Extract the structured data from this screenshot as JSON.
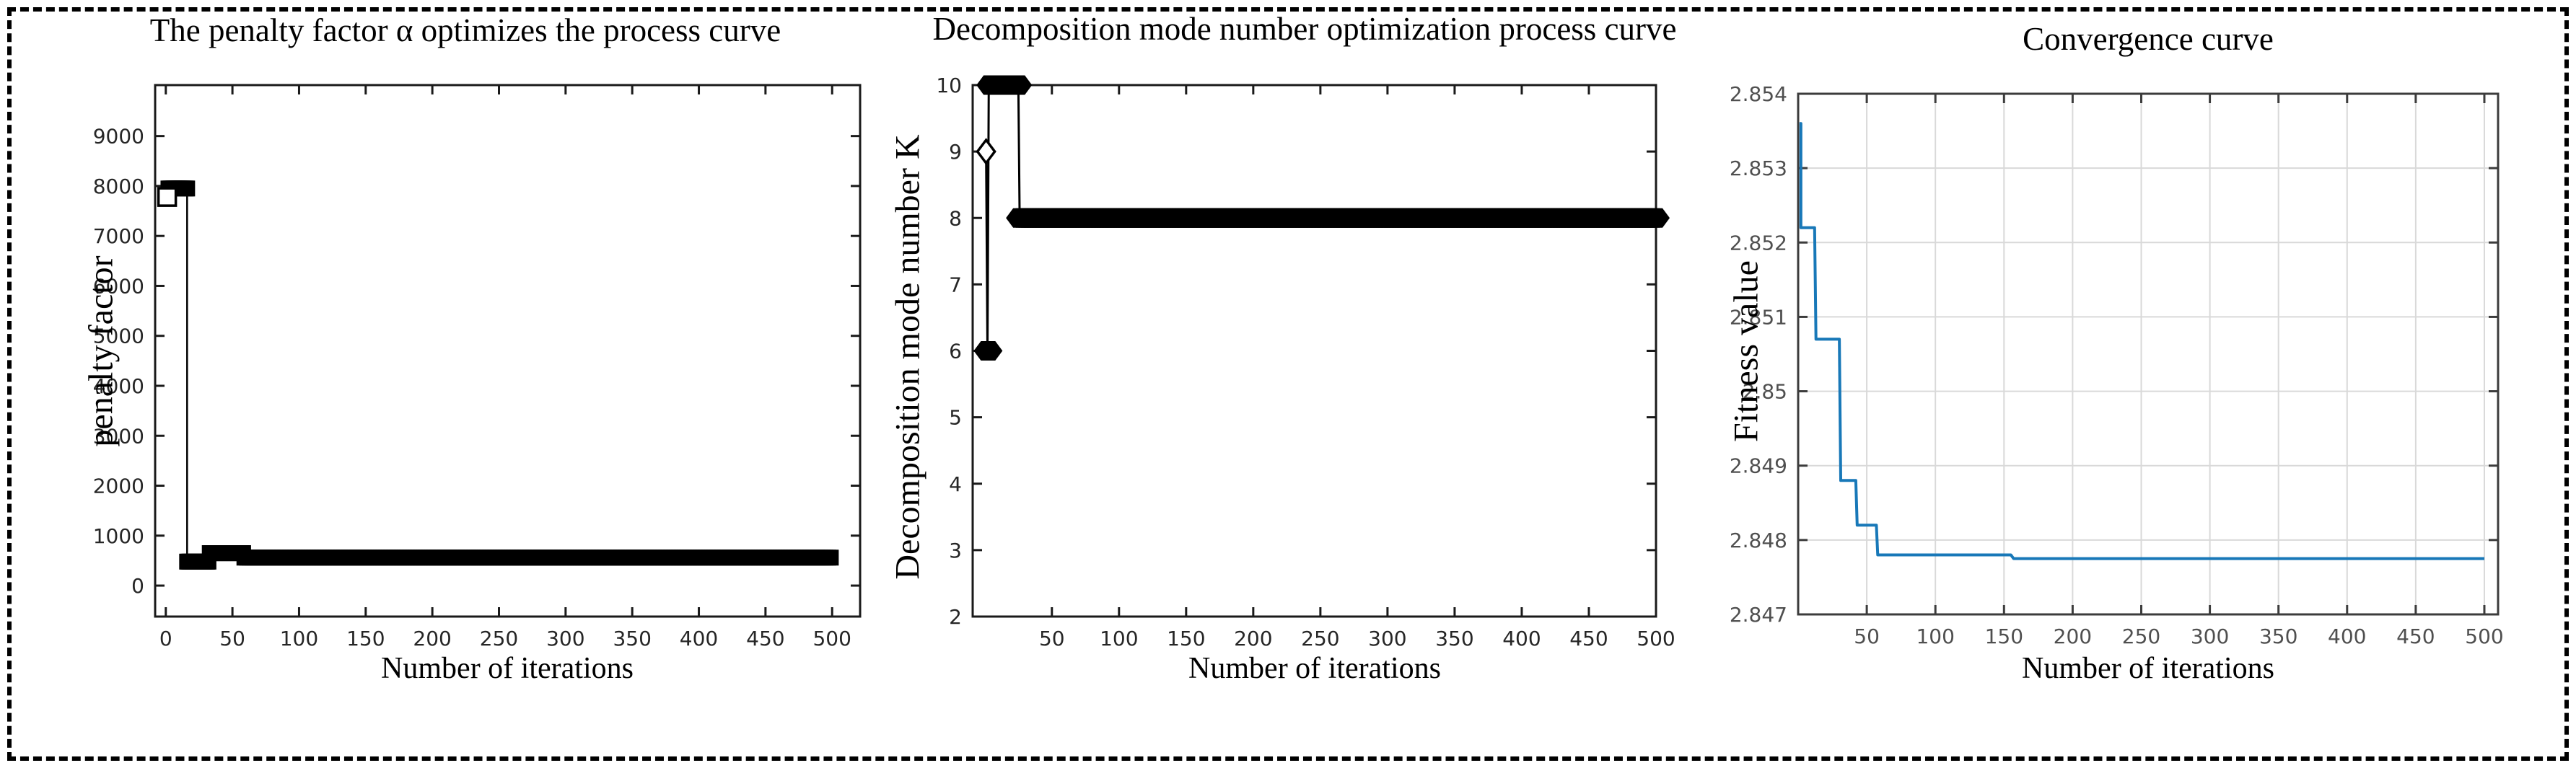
{
  "figure": {
    "border_color": "#000000",
    "background": "#ffffff"
  },
  "chart_data": [
    {
      "type": "line",
      "title": "The penalty factor α optimizes the process curve",
      "xlabel": "Number of iterations",
      "ylabel": "penalty factor",
      "xlim": [
        -8,
        521
      ],
      "ylim": [
        -620,
        10020
      ],
      "x_ticks": [
        0,
        50,
        100,
        150,
        200,
        250,
        300,
        350,
        400,
        450,
        500
      ],
      "y_ticks": [
        0,
        1000,
        2000,
        3000,
        4000,
        5000,
        6000,
        7000,
        8000,
        9000
      ],
      "grid": false,
      "legend_position": "none",
      "axis_color": "#1a1a1a",
      "tick_label_color": "#262626",
      "line_color": "#000000",
      "line_width": 2.5,
      "marker": "square",
      "marker_color": "#000000",
      "line_points": [
        [
          1,
          7780
        ],
        [
          2,
          7950
        ],
        [
          16,
          7950
        ],
        [
          16,
          480
        ],
        [
          32,
          480
        ],
        [
          33,
          650
        ],
        [
          58,
          650
        ],
        [
          59,
          560
        ],
        [
          500,
          560
        ]
      ],
      "marker_runs": [
        {
          "from": 2,
          "to": 16,
          "step": 1,
          "y": 7950
        },
        {
          "from": 16,
          "to": 32,
          "step": 1,
          "y": 480
        },
        {
          "from": 33,
          "to": 58,
          "step": 1,
          "y": 650
        },
        {
          "from": 59,
          "to": 500,
          "step": 2,
          "y": 560
        }
      ],
      "open_markers": {
        "shape": "square",
        "points": [
          [
            1,
            7780
          ]
        ]
      }
    },
    {
      "type": "line",
      "title": "Decomposition mode number optimization process curve",
      "xlabel": "Number of iterations",
      "ylabel": "Decomposition mode number K",
      "xlim": [
        -9,
        500
      ],
      "ylim": [
        2,
        10
      ],
      "x_ticks": [
        50,
        100,
        150,
        200,
        250,
        300,
        350,
        400,
        450,
        500
      ],
      "y_ticks": [
        2,
        3,
        4,
        5,
        6,
        7,
        8,
        9,
        10
      ],
      "grid": false,
      "legend_position": "none",
      "axis_color": "#1a1a1a",
      "tick_label_color": "#262626",
      "line_color": "#000000",
      "line_width": 3,
      "marker": "hexagon",
      "marker_color": "#000000",
      "line_points": [
        [
          1,
          9
        ],
        [
          2,
          6
        ],
        [
          3,
          10
        ],
        [
          25,
          10
        ],
        [
          26,
          8
        ],
        [
          500,
          8
        ]
      ],
      "marker_runs": [
        {
          "from": 2,
          "to": 3,
          "step": 1,
          "y": 6
        },
        {
          "from": 4,
          "to": 25,
          "step": 1,
          "y": 10
        },
        {
          "from": 26,
          "to": 500,
          "step": 2,
          "y": 8
        }
      ],
      "open_markers": {
        "shape": "diamond",
        "points": [
          [
            1,
            9
          ]
        ]
      }
    },
    {
      "type": "line",
      "title": "Convergence curve",
      "xlabel": "Number of iterations",
      "ylabel": "Fitness value",
      "xlim": [
        0,
        510
      ],
      "ylim": [
        2.847,
        2.854
      ],
      "x_ticks": [
        50,
        100,
        150,
        200,
        250,
        300,
        350,
        400,
        450,
        500
      ],
      "y_ticks": [
        2.847,
        2.848,
        2.849,
        2.85,
        2.851,
        2.852,
        2.853,
        2.854
      ],
      "y_tick_labels": [
        "2.847",
        "2.848",
        "2.849",
        "2.85",
        "2.851",
        "2.852",
        "2.853",
        "2.854"
      ],
      "grid": true,
      "grid_color": "#d9d9d9",
      "legend_position": "none",
      "axis_color": "#3c3c3c",
      "tick_label_color": "#4f4f4f",
      "line_color": "#1878b8",
      "line_width": 4,
      "marker": "none",
      "line_points": [
        [
          1,
          2.8536
        ],
        [
          2,
          2.8536
        ],
        [
          2,
          2.8522
        ],
        [
          12,
          2.8522
        ],
        [
          13,
          2.8507
        ],
        [
          30,
          2.8507
        ],
        [
          31,
          2.8488
        ],
        [
          42,
          2.8488
        ],
        [
          43,
          2.8482
        ],
        [
          57,
          2.8482
        ],
        [
          58,
          2.8478
        ],
        [
          155,
          2.8478
        ],
        [
          157,
          2.84775
        ],
        [
          500,
          2.84775
        ]
      ]
    }
  ]
}
